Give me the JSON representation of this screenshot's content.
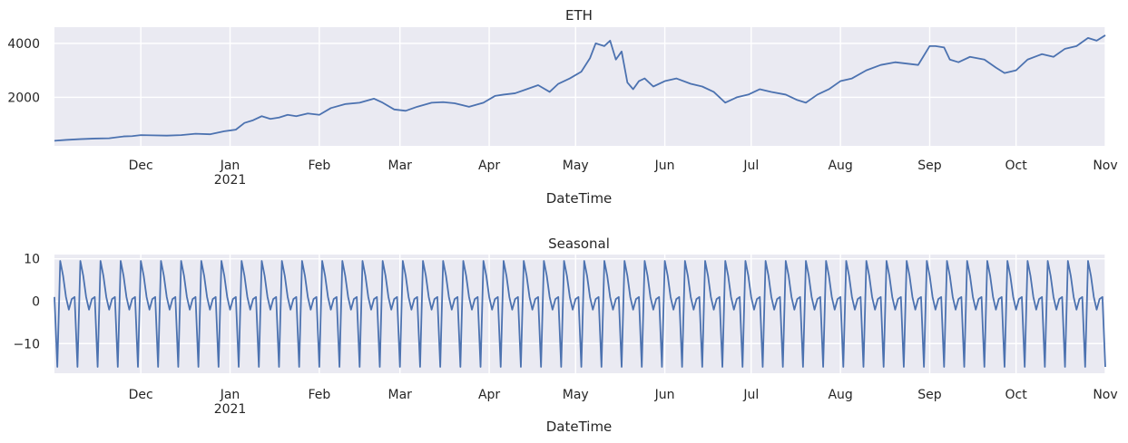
{
  "chart_data": [
    {
      "type": "line",
      "title": "ETH",
      "xlabel": "DateTime",
      "ylabel": "",
      "xlim": [
        "2020-11-01",
        "2021-11-01"
      ],
      "ylim": [
        200,
        4600
      ],
      "yticks": [
        2000,
        4000
      ],
      "ytick_labels": [
        "2000",
        "4000"
      ],
      "xticks": [
        "2020-12-01",
        "2021-01-01",
        "2021-02-01",
        "2021-03-01",
        "2021-04-01",
        "2021-05-01",
        "2021-06-01",
        "2021-07-01",
        "2021-08-01",
        "2021-09-01",
        "2021-10-01",
        "2021-11-01"
      ],
      "xtick_labels": [
        "Dec",
        "Jan\n2021",
        "Feb",
        "Mar",
        "Apr",
        "May",
        "Jun",
        "Jul",
        "Aug",
        "Sep",
        "Oct",
        "Nov"
      ],
      "grid": true,
      "colors": {
        "line": "#4c72b0",
        "background": "#eaeaf2",
        "grid": "#ffffff"
      },
      "series": [
        {
          "x": [
            "2020-11-01",
            "2020-11-05",
            "2020-11-10",
            "2020-11-15",
            "2020-11-20",
            "2020-11-25",
            "2020-11-28",
            "2020-12-01",
            "2020-12-05",
            "2020-12-10",
            "2020-12-15",
            "2020-12-20",
            "2020-12-25",
            "2020-12-30",
            "2021-01-03",
            "2021-01-06",
            "2021-01-09",
            "2021-01-12",
            "2021-01-15",
            "2021-01-18",
            "2021-01-21",
            "2021-01-24",
            "2021-01-28",
            "2021-02-01",
            "2021-02-05",
            "2021-02-10",
            "2021-02-15",
            "2021-02-20",
            "2021-02-23",
            "2021-02-27",
            "2021-03-03",
            "2021-03-07",
            "2021-03-12",
            "2021-03-16",
            "2021-03-20",
            "2021-03-25",
            "2021-03-30",
            "2021-04-03",
            "2021-04-06",
            "2021-04-10",
            "2021-04-14",
            "2021-04-18",
            "2021-04-22",
            "2021-04-25",
            "2021-04-29",
            "2021-05-03",
            "2021-05-06",
            "2021-05-08",
            "2021-05-11",
            "2021-05-13",
            "2021-05-15",
            "2021-05-17",
            "2021-05-19",
            "2021-05-21",
            "2021-05-23",
            "2021-05-25",
            "2021-05-28",
            "2021-06-01",
            "2021-06-05",
            "2021-06-10",
            "2021-06-14",
            "2021-06-18",
            "2021-06-22",
            "2021-06-26",
            "2021-06-30",
            "2021-07-04",
            "2021-07-08",
            "2021-07-13",
            "2021-07-17",
            "2021-07-20",
            "2021-07-24",
            "2021-07-28",
            "2021-08-01",
            "2021-08-05",
            "2021-08-10",
            "2021-08-15",
            "2021-08-20",
            "2021-08-24",
            "2021-08-28",
            "2021-09-01",
            "2021-09-03",
            "2021-09-06",
            "2021-09-08",
            "2021-09-11",
            "2021-09-15",
            "2021-09-20",
            "2021-09-24",
            "2021-09-27",
            "2021-10-01",
            "2021-10-05",
            "2021-10-10",
            "2021-10-14",
            "2021-10-18",
            "2021-10-22",
            "2021-10-26",
            "2021-10-29",
            "2021-11-01"
          ],
          "y": [
            390,
            420,
            450,
            470,
            480,
            550,
            560,
            600,
            590,
            580,
            600,
            650,
            630,
            740,
            800,
            1050,
            1150,
            1300,
            1200,
            1250,
            1350,
            1300,
            1400,
            1350,
            1600,
            1750,
            1800,
            1950,
            1800,
            1550,
            1500,
            1650,
            1800,
            1820,
            1780,
            1650,
            1800,
            2050,
            2100,
            2150,
            2300,
            2450,
            2200,
            2500,
            2700,
            2950,
            3450,
            4000,
            3900,
            4100,
            3400,
            3700,
            2550,
            2300,
            2600,
            2700,
            2400,
            2600,
            2700,
            2500,
            2400,
            2200,
            1800,
            2000,
            2100,
            2300,
            2200,
            2100,
            1900,
            1800,
            2100,
            2300,
            2600,
            2700,
            3000,
            3200,
            3300,
            3250,
            3200,
            3900,
            3900,
            3850,
            3400,
            3300,
            3500,
            3400,
            3100,
            2900,
            3000,
            3400,
            3600,
            3500,
            3800,
            3900,
            4200,
            4100,
            4300
          ]
        }
      ]
    },
    {
      "type": "line",
      "title": "Seasonal",
      "xlabel": "DateTime",
      "ylabel": "",
      "xlim": [
        "2020-11-01",
        "2021-11-01"
      ],
      "ylim": [
        -17,
        11
      ],
      "yticks": [
        -10,
        0,
        10
      ],
      "ytick_labels": [
        "−10",
        "0",
        "10"
      ],
      "xticks": [
        "2020-12-01",
        "2021-01-01",
        "2021-02-01",
        "2021-03-01",
        "2021-04-01",
        "2021-05-01",
        "2021-06-01",
        "2021-07-01",
        "2021-08-01",
        "2021-09-01",
        "2021-10-01",
        "2021-11-01"
      ],
      "xtick_labels": [
        "Dec",
        "Jan\n2021",
        "Feb",
        "Mar",
        "Apr",
        "May",
        "Jun",
        "Jul",
        "Aug",
        "Sep",
        "Oct",
        "Nov"
      ],
      "grid": true,
      "colors": {
        "line": "#4c72b0",
        "background": "#eaeaf2",
        "grid": "#ffffff"
      },
      "period_days": 7,
      "start": "2020-11-01",
      "pattern": [
        1,
        -15.5,
        9.5,
        6,
        1,
        -2,
        0.5
      ]
    }
  ]
}
